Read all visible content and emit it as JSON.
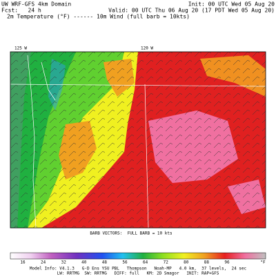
{
  "header": {
    "title": "UW WRF-GFS 4km Domain",
    "init": "Init: 00 UTC Wed 05 Aug 20",
    "forecast": "Fcst:   24 h",
    "valid": "Valid: 00 UTC Thu 06 Aug 20 (17 PDT Wed 05 Aug 20)",
    "fields": "2m Temperature (°F) ------ 10m Wind (full barb = 10kts)"
  },
  "map": {
    "longitude_labels": [
      "125 W",
      "120 W"
    ],
    "barb_note": "BARB VECTORS:  FULL BARB = 10 kts"
  },
  "colorbar": {
    "labels": [
      "16",
      "24",
      "32",
      "40",
      "48",
      "56",
      "64",
      "72",
      "80",
      "88",
      "96",
      "°F"
    ]
  },
  "footer": {
    "model_info": "Model Info: V4.1.3   G-D Ens YSU PBL   Thompson   Noah-MP   4.0 km,  37 levels,  24 sec",
    "physics": "LW: RRTMG  SW: RRTMG   DIFF: full   KM: 2D Smagor   INIT: RAP+GFS"
  }
}
